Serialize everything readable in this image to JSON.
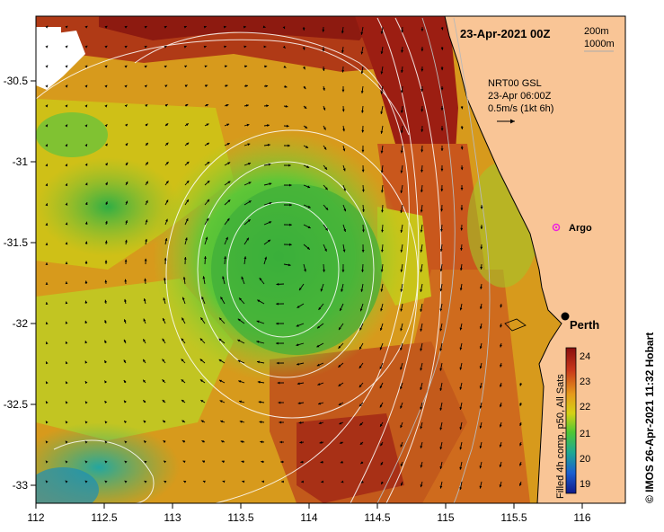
{
  "map": {
    "title": "23-Apr-2021 00Z",
    "depth_legend": {
      "a": "200m",
      "b": "1000m"
    },
    "current_legend": {
      "line1": "NRT00 GSL",
      "line2": "23-Apr 06:00Z",
      "line3": "0.5m/s (1kt 6h)"
    },
    "places": {
      "argo": "Argo",
      "perth": "Perth"
    },
    "colorbar": {
      "label": "Filled 4h comp, p50, All Sats",
      "ticks": [
        "24",
        "23",
        "22",
        "21",
        "20",
        "19"
      ]
    },
    "credit": "© IMOS 26-Apr-2021 11:32 Hobart",
    "x_ticks": [
      "112",
      "112.5",
      "113",
      "113.5",
      "114",
      "114.5",
      "115",
      "115.5",
      "116"
    ],
    "y_ticks": [
      "-30.5",
      "-31",
      "-31.5",
      "-32",
      "-32.5",
      "-33"
    ],
    "colors": {
      "land": "#f9c596",
      "warm": "#8b1a10",
      "cool": "#1f8fb0"
    }
  }
}
